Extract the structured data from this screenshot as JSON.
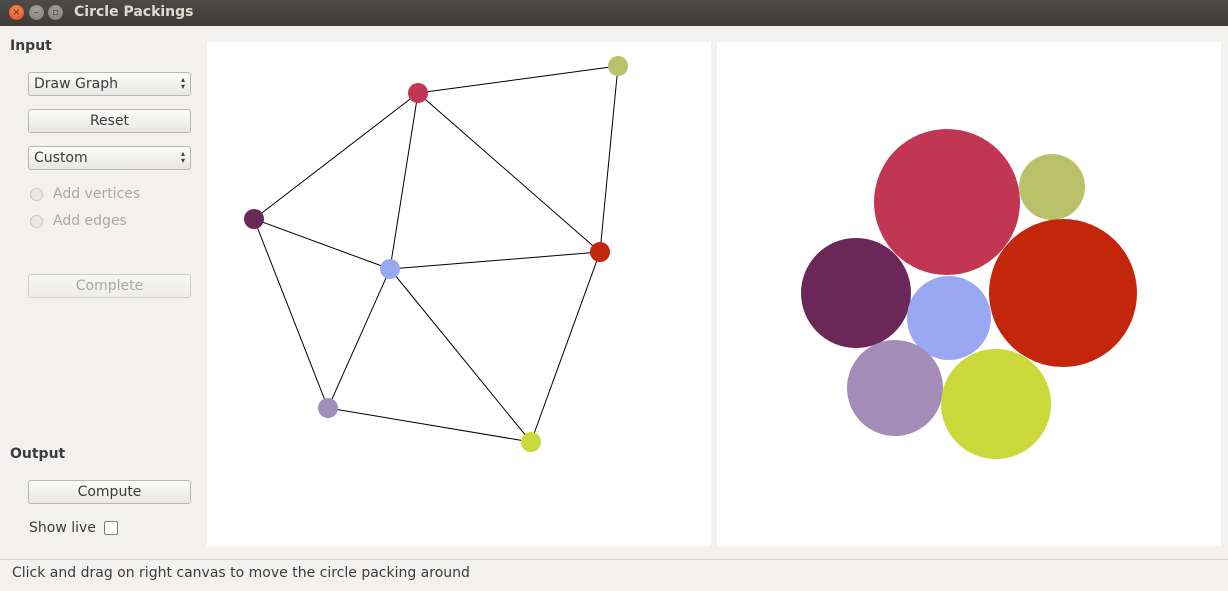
{
  "window": {
    "title": "Circle Packings",
    "close_glyph": "×",
    "min_glyph": "–",
    "max_glyph": "▫"
  },
  "input": {
    "heading": "Input",
    "mode_select": "Draw Graph",
    "reset_label": "Reset",
    "preset_select": "Custom",
    "add_vertices_label": "Add vertices",
    "add_edges_label": "Add edges",
    "complete_label": "Complete"
  },
  "output": {
    "heading": "Output",
    "compute_label": "Compute",
    "show_live_label": "Show live"
  },
  "status": {
    "text": "Click and drag on right canvas to move the circle packing around"
  },
  "colors": {
    "crimson": "#c13652",
    "olive": "#b9c26a",
    "purple": "#6a2757",
    "periwinkle": "#9aa8f4",
    "red": "#c4260b",
    "lavender": "#a48cb8",
    "lime": "#cbd83a"
  }
}
